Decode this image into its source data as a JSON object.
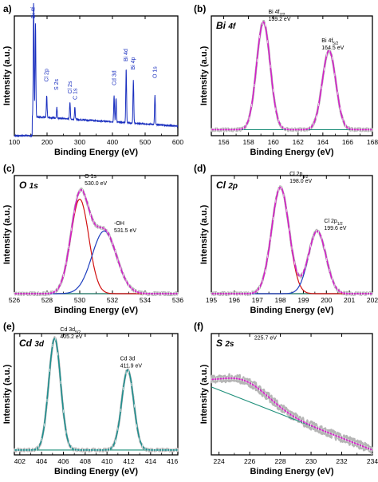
{
  "chart_data": [
    {
      "panel": "a)",
      "title": "",
      "type": "line",
      "xlabel": "Binding Energy (eV)",
      "ylabel": "Intensity (a.u.)",
      "xlim": [
        100,
        600
      ],
      "xticks": [
        100,
        200,
        300,
        400,
        500,
        600
      ],
      "series_color": "#1a2fbf",
      "peaks": [
        {
          "x": 159,
          "h": 0.95
        },
        {
          "x": 164.5,
          "h": 0.78
        },
        {
          "x": 199,
          "h": 0.18
        },
        {
          "x": 230,
          "h": 0.09
        },
        {
          "x": 270,
          "h": 0.14
        },
        {
          "x": 285,
          "h": 0.1
        },
        {
          "x": 405,
          "h": 0.22
        },
        {
          "x": 411,
          "h": 0.2
        },
        {
          "x": 442,
          "h": 0.45
        },
        {
          "x": 464,
          "h": 0.36
        },
        {
          "x": 530,
          "h": 0.25
        }
      ],
      "annotations": [
        {
          "text": "Bi 4f",
          "x": 159,
          "level": 0.98
        },
        {
          "text": "Cl 2p",
          "x": 199,
          "level": 0.45
        },
        {
          "text": "S 2s",
          "x": 229,
          "level": 0.38
        },
        {
          "text": "Cl 2s",
          "x": 271,
          "level": 0.35
        },
        {
          "text": "C 1s",
          "x": 286,
          "level": 0.3
        },
        {
          "text": "Cd 3d",
          "x": 406,
          "level": 0.42
        },
        {
          "text": "Bi 4d",
          "x": 442,
          "level": 0.62
        },
        {
          "text": "Bi 4p",
          "x": 464,
          "level": 0.55
        },
        {
          "text": "O 1s",
          "x": 531,
          "level": 0.48
        }
      ]
    },
    {
      "panel": "(b)",
      "title": "Bi 4f",
      "type": "line",
      "xlabel": "Binding Energy (eV)",
      "ylabel": "Intensity (a.u.)",
      "xlim": [
        155,
        168
      ],
      "xticks": [
        156,
        158,
        160,
        162,
        164,
        166,
        168
      ],
      "baseline": [
        0.05,
        0.05
      ],
      "components": [],
      "envelope": [
        {
          "center": 159.2,
          "height": 0.9,
          "width": 0.55
        },
        {
          "center": 164.5,
          "height": 0.66,
          "width": 0.55
        }
      ],
      "annotations": [
        {
          "main": "Bi 4f",
          "sub": "7/2",
          "value": "159.2 eV",
          "x": 159.6,
          "level": 1.02
        },
        {
          "main": "Bi 4f",
          "sub": "5/2",
          "value": "164.5 eV",
          "x": 163.9,
          "level": 0.78
        }
      ]
    },
    {
      "panel": "(c)",
      "title": "O 1s",
      "type": "line",
      "xlabel": "Binding Energy (eV)",
      "ylabel": "Intensity (a.u.)",
      "xlim": [
        526,
        536
      ],
      "xticks": [
        526,
        528,
        530,
        532,
        534,
        536
      ],
      "baseline": [
        0.0,
        0.0
      ],
      "components": [
        {
          "center": 530.0,
          "height": 0.8,
          "width": 0.55,
          "color": "#d11111"
        },
        {
          "center": 531.5,
          "height": 0.53,
          "width": 0.75,
          "color": "#1f3fbf"
        }
      ],
      "annotations": [
        {
          "main": "O 1s",
          "sub": "",
          "value": "530.0 eV",
          "x": 530.3,
          "level": 0.98
        },
        {
          "main": "-OH",
          "sub": "",
          "value": "531.5 eV",
          "x": 532.1,
          "level": 0.58
        }
      ]
    },
    {
      "panel": "(d)",
      "title": "Cl 2p",
      "type": "line",
      "xlabel": "Binding Energy (eV)",
      "ylabel": "Intensity (a.u.)",
      "xlim": [
        195,
        202
      ],
      "xticks": [
        195,
        196,
        197,
        198,
        199,
        200,
        201,
        202
      ],
      "baseline": [
        0.0,
        0.0
      ],
      "components": [
        {
          "center": 198.0,
          "height": 0.9,
          "width": 0.38,
          "color": "#d11111"
        },
        {
          "center": 199.6,
          "height": 0.53,
          "width": 0.38,
          "color": "#1f3fbf"
        }
      ],
      "annotations": [
        {
          "main": "Cl 2p",
          "sub": "3/2",
          "value": "198.0 eV",
          "x": 198.4,
          "level": 1.0
        },
        {
          "main": "Cl 2p",
          "sub": "1/2",
          "value": "199.6 eV",
          "x": 199.9,
          "level": 0.6
        }
      ]
    },
    {
      "panel": "(e)",
      "title": "Cd 3d",
      "type": "line",
      "xlabel": "Binding Energy (eV)",
      "ylabel": "Intensity (a.u.)",
      "xlim": [
        401.5,
        416.5
      ],
      "xticks": [
        402,
        404,
        406,
        408,
        410,
        412,
        414,
        416
      ],
      "baseline": [
        0.04,
        0.04
      ],
      "components": [],
      "envelope_color": "#1e8f8f",
      "envelope": [
        {
          "center": 405.2,
          "height": 0.92,
          "width": 0.55
        },
        {
          "center": 411.9,
          "height": 0.66,
          "width": 0.55
        }
      ],
      "annotations": [
        {
          "main": "Cd 3d",
          "sub": "5/2",
          "value": "405.2 eV",
          "x": 405.7,
          "level": 1.02
        },
        {
          "main": "Cd 3d",
          "sub": "",
          "value": "411.9 eV",
          "x": 411.2,
          "level": 0.78
        }
      ]
    },
    {
      "panel": "(f)",
      "title": "S 2s",
      "type": "line",
      "xlabel": "Binding Energy (eV)",
      "ylabel": "Intensity (a.u.)",
      "xlim": [
        223.5,
        234
      ],
      "xticks": [
        224,
        226,
        228,
        230,
        232,
        234
      ],
      "baseline": [
        0.56,
        0.04
      ],
      "components": [],
      "envelope": [
        {
          "center": 225.7,
          "height": 0.16,
          "width": 1.6
        }
      ],
      "annotations": [
        {
          "main": "225.7 eV",
          "sub": "",
          "value": "",
          "x": 226.3,
          "level": 0.95
        }
      ]
    }
  ]
}
